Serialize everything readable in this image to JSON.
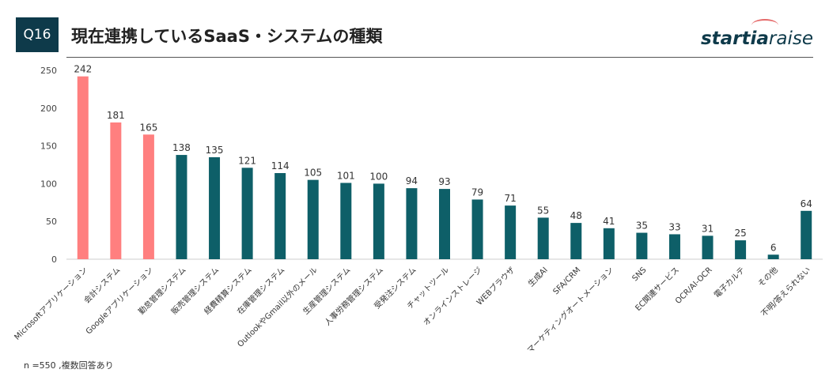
{
  "header": {
    "badge": "Q16",
    "title": "現在連携しているSaaS・システムの種類",
    "brand_bold": "startia",
    "brand_light": "raise"
  },
  "footnote": "n =550 ,複数回答あり",
  "colors": {
    "highlight": "#ff7f7f",
    "default": "#0e5f68",
    "axis": "#cccccc"
  },
  "chart_data": {
    "type": "bar",
    "title": "",
    "xlabel": "",
    "ylabel": "",
    "ylim": [
      0,
      250
    ],
    "yticks": [
      0,
      50,
      100,
      150,
      200,
      250
    ],
    "grid": false,
    "categories": [
      "Microsoftアプリケーション",
      "会計システム",
      "Googleアプリケーション",
      "勤怠管理システム",
      "販売管理システム",
      "経費精算システム",
      "在庫管理システム",
      "OutlookやGmail以外のメール",
      "生産管理システム",
      "人事労務管理システム",
      "受発注システム",
      "チャットツール",
      "オンラインストレージ",
      "WEBブラウザ",
      "生成AI",
      "SFA/CRM",
      "マーケティングオートメーション",
      "SNS",
      "EC関連サービス",
      "OCR/AI-OCR",
      "電子カルテ",
      "その他",
      "不明/答えられない"
    ],
    "values": [
      242,
      181,
      165,
      138,
      135,
      121,
      114,
      105,
      101,
      100,
      94,
      93,
      79,
      71,
      55,
      48,
      41,
      35,
      33,
      31,
      25,
      6,
      64
    ],
    "highlight": [
      true,
      true,
      true,
      false,
      false,
      false,
      false,
      false,
      false,
      false,
      false,
      false,
      false,
      false,
      false,
      false,
      false,
      false,
      false,
      false,
      false,
      false,
      false
    ]
  }
}
